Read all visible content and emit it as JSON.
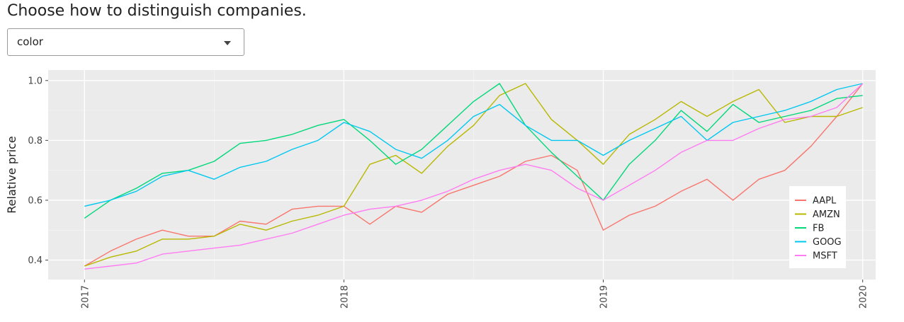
{
  "prompt": "Choose how to distinguish companies.",
  "dropdown": {
    "selected": "color"
  },
  "colors": {
    "AAPL": "#F8766D",
    "AMZN": "#B8B800",
    "FB": "#00D87A",
    "GOOG": "#00C8F0",
    "MSFT": "#FF7CF2"
  },
  "chart_data": {
    "type": "line",
    "title": "",
    "xlabel": "",
    "ylabel": "Relative price",
    "xlim": [
      2016.86,
      2020.05
    ],
    "ylim": [
      0.335,
      1.035
    ],
    "x_ticks": [
      {
        "value": 2017,
        "label": "2017"
      },
      {
        "value": 2018,
        "label": "2018"
      },
      {
        "value": 2019,
        "label": "2019"
      },
      {
        "value": 2020,
        "label": "2020"
      }
    ],
    "y_ticks": [
      {
        "value": 0.4,
        "label": "0.4"
      },
      {
        "value": 0.6,
        "label": "0.6"
      },
      {
        "value": 0.8,
        "label": "0.8"
      },
      {
        "value": 1.0,
        "label": "1.0"
      }
    ],
    "grid": true,
    "legend_position": "right",
    "series": [
      {
        "name": "AAPL",
        "x": [
          2017.0,
          2017.1,
          2017.2,
          2017.3,
          2017.4,
          2017.5,
          2017.6,
          2017.7,
          2017.8,
          2017.9,
          2018.0,
          2018.1,
          2018.2,
          2018.3,
          2018.4,
          2018.5,
          2018.6,
          2018.7,
          2018.8,
          2018.9,
          2019.0,
          2019.1,
          2019.2,
          2019.3,
          2019.4,
          2019.5,
          2019.6,
          2019.7,
          2019.8,
          2019.9,
          2020.0
        ],
        "y": [
          0.38,
          0.43,
          0.47,
          0.5,
          0.48,
          0.48,
          0.53,
          0.52,
          0.57,
          0.58,
          0.58,
          0.52,
          0.58,
          0.56,
          0.62,
          0.65,
          0.68,
          0.73,
          0.75,
          0.7,
          0.5,
          0.55,
          0.58,
          0.63,
          0.67,
          0.6,
          0.67,
          0.7,
          0.78,
          0.88,
          0.99
        ]
      },
      {
        "name": "AMZN",
        "x": [
          2017.0,
          2017.1,
          2017.2,
          2017.3,
          2017.4,
          2017.5,
          2017.6,
          2017.7,
          2017.8,
          2017.9,
          2018.0,
          2018.1,
          2018.2,
          2018.3,
          2018.4,
          2018.5,
          2018.6,
          2018.7,
          2018.8,
          2018.9,
          2019.0,
          2019.1,
          2019.2,
          2019.3,
          2019.4,
          2019.5,
          2019.6,
          2019.7,
          2019.8,
          2019.9,
          2020.0
        ],
        "y": [
          0.38,
          0.41,
          0.43,
          0.47,
          0.47,
          0.48,
          0.52,
          0.5,
          0.53,
          0.55,
          0.58,
          0.72,
          0.75,
          0.69,
          0.78,
          0.85,
          0.95,
          0.99,
          0.87,
          0.8,
          0.72,
          0.82,
          0.87,
          0.93,
          0.88,
          0.93,
          0.97,
          0.86,
          0.88,
          0.88,
          0.91
        ]
      },
      {
        "name": "FB",
        "x": [
          2017.0,
          2017.1,
          2017.2,
          2017.3,
          2017.4,
          2017.5,
          2017.6,
          2017.7,
          2017.8,
          2017.9,
          2018.0,
          2018.1,
          2018.2,
          2018.3,
          2018.4,
          2018.5,
          2018.6,
          2018.7,
          2018.8,
          2018.9,
          2019.0,
          2019.1,
          2019.2,
          2019.3,
          2019.4,
          2019.5,
          2019.6,
          2019.7,
          2019.8,
          2019.9,
          2020.0
        ],
        "y": [
          0.54,
          0.6,
          0.64,
          0.69,
          0.7,
          0.73,
          0.79,
          0.8,
          0.82,
          0.85,
          0.87,
          0.8,
          0.72,
          0.77,
          0.85,
          0.93,
          0.99,
          0.85,
          0.76,
          0.68,
          0.6,
          0.72,
          0.8,
          0.9,
          0.83,
          0.92,
          0.86,
          0.88,
          0.9,
          0.94,
          0.95
        ]
      },
      {
        "name": "GOOG",
        "x": [
          2017.0,
          2017.1,
          2017.2,
          2017.3,
          2017.4,
          2017.5,
          2017.6,
          2017.7,
          2017.8,
          2017.9,
          2018.0,
          2018.1,
          2018.2,
          2018.3,
          2018.4,
          2018.5,
          2018.6,
          2018.7,
          2018.8,
          2018.9,
          2019.0,
          2019.1,
          2019.2,
          2019.3,
          2019.4,
          2019.5,
          2019.6,
          2019.7,
          2019.8,
          2019.9,
          2020.0
        ],
        "y": [
          0.58,
          0.6,
          0.63,
          0.68,
          0.7,
          0.67,
          0.71,
          0.73,
          0.77,
          0.8,
          0.86,
          0.83,
          0.77,
          0.74,
          0.8,
          0.88,
          0.92,
          0.85,
          0.8,
          0.8,
          0.75,
          0.8,
          0.84,
          0.88,
          0.8,
          0.86,
          0.88,
          0.9,
          0.93,
          0.97,
          0.99
        ]
      },
      {
        "name": "MSFT",
        "x": [
          2017.0,
          2017.1,
          2017.2,
          2017.3,
          2017.4,
          2017.5,
          2017.6,
          2017.7,
          2017.8,
          2017.9,
          2018.0,
          2018.1,
          2018.2,
          2018.3,
          2018.4,
          2018.5,
          2018.6,
          2018.7,
          2018.8,
          2018.9,
          2019.0,
          2019.1,
          2019.2,
          2019.3,
          2019.4,
          2019.5,
          2019.6,
          2019.7,
          2019.8,
          2019.9,
          2020.0
        ],
        "y": [
          0.37,
          0.38,
          0.39,
          0.42,
          0.43,
          0.44,
          0.45,
          0.47,
          0.49,
          0.52,
          0.55,
          0.57,
          0.58,
          0.6,
          0.63,
          0.67,
          0.7,
          0.72,
          0.7,
          0.64,
          0.6,
          0.65,
          0.7,
          0.76,
          0.8,
          0.8,
          0.84,
          0.87,
          0.88,
          0.91,
          0.99
        ]
      }
    ]
  }
}
